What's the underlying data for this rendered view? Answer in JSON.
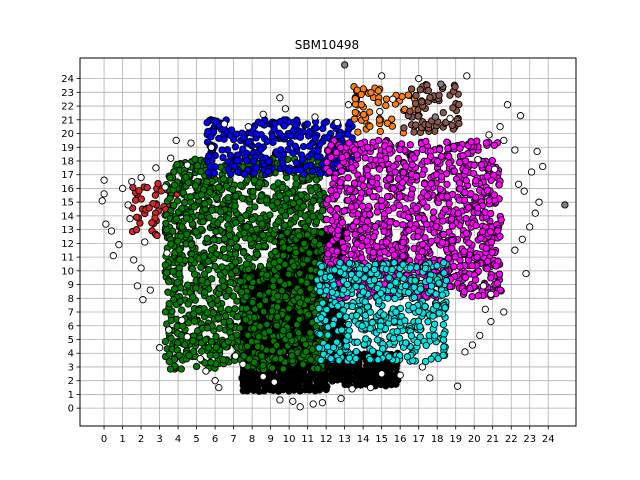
{
  "chart_data": {
    "type": "scatter",
    "title": "SBM10498",
    "xlabel": "",
    "ylabel": "",
    "xlim": [
      -1.3,
      25.5
    ],
    "ylim": [
      -1.3,
      25.5
    ],
    "xticks": [
      0,
      1,
      2,
      3,
      4,
      5,
      6,
      7,
      8,
      9,
      10,
      11,
      12,
      13,
      14,
      15,
      16,
      17,
      18,
      19,
      20,
      21,
      22,
      23,
      24
    ],
    "yticks": [
      0,
      1,
      2,
      3,
      4,
      5,
      6,
      7,
      8,
      9,
      10,
      11,
      12,
      13,
      14,
      15,
      16,
      17,
      18,
      19,
      20,
      21,
      22,
      23,
      24
    ],
    "grid": true,
    "legend": "none",
    "colors": {
      "grid": "#b0b0b0",
      "marker_edge": "#000000",
      "outlier": "#ffffff",
      "outlier_gray": "#808080"
    },
    "regions": [
      {
        "color": "#d62728",
        "x": [
          1.5,
          4.0
        ],
        "y": [
          12.5,
          16.6
        ],
        "density": 0.45
      },
      {
        "color": "#008000",
        "x": [
          3.3,
          12.0
        ],
        "y": [
          2.8,
          18.2
        ],
        "density": 0.92
      },
      {
        "color": "#0000ff",
        "x": [
          5.5,
          13.5
        ],
        "y": [
          17.0,
          21.0
        ],
        "density": 0.85
      },
      {
        "color": "#ff00ff",
        "x": [
          12.0,
          21.5
        ],
        "y": [
          8.0,
          19.5
        ],
        "density": 0.92
      },
      {
        "color": "#00e5e5",
        "x": [
          11.5,
          18.5
        ],
        "y": [
          3.4,
          10.6
        ],
        "density": 0.9
      },
      {
        "color": "#ff7f0e",
        "x": [
          13.5,
          16.8
        ],
        "y": [
          20.0,
          23.5
        ],
        "density": 0.45
      },
      {
        "color": "#8c564b",
        "x": [
          16.2,
          19.2
        ],
        "y": [
          20.0,
          23.6
        ],
        "density": 0.55
      }
    ],
    "black_blocks": [
      {
        "x": [
          7.5,
          12.0
        ],
        "y": [
          1.3,
          10.0
        ]
      },
      {
        "x": [
          9.5,
          12.0
        ],
        "y": [
          10.0,
          13.0
        ]
      },
      {
        "x": [
          12.0,
          13.0
        ],
        "y": [
          2.0,
          13.0
        ]
      },
      {
        "x": [
          13.0,
          16.0
        ],
        "y": [
          1.7,
          4.2
        ]
      }
    ],
    "outliers": [
      [
        0,
        16.6
      ],
      [
        0,
        15.6
      ],
      [
        -0.1,
        15.1
      ],
      [
        0.1,
        13.4
      ],
      [
        0.4,
        12.9
      ],
      [
        0.5,
        11.1
      ],
      [
        1.4,
        13.8
      ],
      [
        1.3,
        14.8
      ],
      [
        1.6,
        10.8
      ],
      [
        2.0,
        10.2
      ],
      [
        1.8,
        8.9
      ],
      [
        2.1,
        7.9
      ],
      [
        2.5,
        8.6
      ],
      [
        3.0,
        4.4
      ],
      [
        3.5,
        5.7
      ],
      [
        4.2,
        6.4
      ],
      [
        4.5,
        5.2
      ],
      [
        5.2,
        3.6
      ],
      [
        5.5,
        2.7
      ],
      [
        6.0,
        2.0
      ],
      [
        6.2,
        1.5
      ],
      [
        7.1,
        3.8
      ],
      [
        7.5,
        3.2
      ],
      [
        8.6,
        2.3
      ],
      [
        9.2,
        1.9
      ],
      [
        9.5,
        0.6
      ],
      [
        10.2,
        0.5
      ],
      [
        10.6,
        0.1
      ],
      [
        11.3,
        0.3
      ],
      [
        11.8,
        0.4
      ],
      [
        12.8,
        0.7
      ],
      [
        13.4,
        1.4
      ],
      [
        14.4,
        1.5
      ],
      [
        15.0,
        2.5
      ],
      [
        16.0,
        2.4
      ],
      [
        17.2,
        3.0
      ],
      [
        17.6,
        2.2
      ],
      [
        19.1,
        1.6
      ],
      [
        19.5,
        4.1
      ],
      [
        19.9,
        4.6
      ],
      [
        20.3,
        5.3
      ],
      [
        20.9,
        6.3
      ],
      [
        20.6,
        7.2
      ],
      [
        20.9,
        8.3
      ],
      [
        21.6,
        7.0
      ],
      [
        20.5,
        8.9
      ],
      [
        22.2,
        11.5
      ],
      [
        22.8,
        9.8
      ],
      [
        22.6,
        12.3
      ],
      [
        23.0,
        13.2
      ],
      [
        23.3,
        14.2
      ],
      [
        23.5,
        15.0
      ],
      [
        22.7,
        15.8
      ],
      [
        23.1,
        17.2
      ],
      [
        23.4,
        18.7
      ],
      [
        22.2,
        18.8
      ],
      [
        21.6,
        19.5
      ],
      [
        20.8,
        19.9
      ],
      [
        20.2,
        18.1
      ],
      [
        21.1,
        17.4
      ],
      [
        21.4,
        20.5
      ],
      [
        21.8,
        22.1
      ],
      [
        22.5,
        21.3
      ],
      [
        19.6,
        24.2
      ],
      [
        18.7,
        21.1
      ],
      [
        17.0,
        24.0
      ],
      [
        15.0,
        24.2
      ],
      [
        15.6,
        22.5
      ],
      [
        14.9,
        21.6
      ],
      [
        13.2,
        22.1
      ],
      [
        12.6,
        20.8
      ],
      [
        11.4,
        21.2
      ],
      [
        9.5,
        22.6
      ],
      [
        9.8,
        21.8
      ],
      [
        8.6,
        21.4
      ],
      [
        7.8,
        20.5
      ],
      [
        6.5,
        20.7
      ],
      [
        5.8,
        19.0
      ],
      [
        4.7,
        19.3
      ],
      [
        3.9,
        19.5
      ],
      [
        3.6,
        18.2
      ],
      [
        2.8,
        17.5
      ],
      [
        2.0,
        16.8
      ],
      [
        3.3,
        16.1
      ],
      [
        1.5,
        16.5
      ],
      [
        2.2,
        12.1
      ],
      [
        3.4,
        11.3
      ],
      [
        4.5,
        17.7
      ],
      [
        23.7,
        17.6
      ],
      [
        22.4,
        16.3
      ],
      [
        0.8,
        11.9
      ],
      [
        1.0,
        16.0
      ]
    ],
    "outliers_gray": [
      [
        13.0,
        25.0
      ],
      [
        24.9,
        14.8
      ],
      [
        18.2,
        23.6
      ],
      [
        17.9,
        21.2
      ]
    ]
  }
}
